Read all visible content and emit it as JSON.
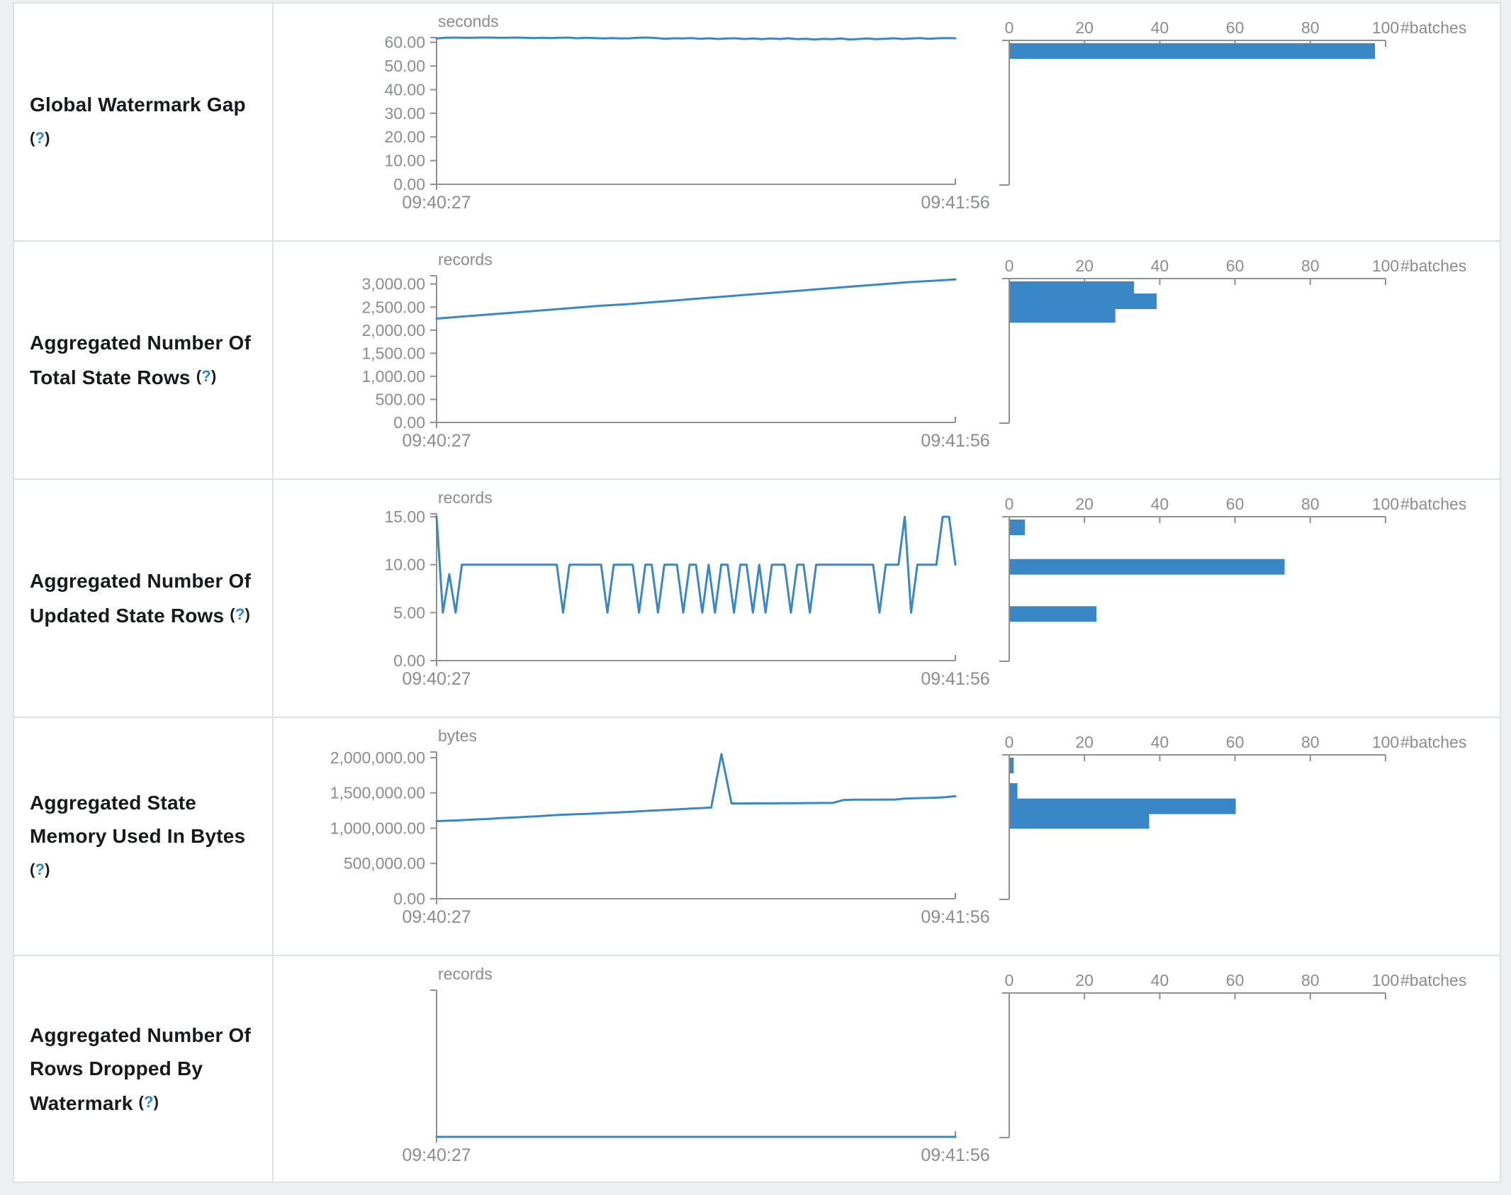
{
  "colors": {
    "accent_blue": "#3a87c8",
    "axis_gray": "#8f9193",
    "text_gray": "#8a8c8e",
    "label_text": "#17191c",
    "help_blue": "#2e86d1",
    "border": "#dee2e6",
    "page_background": "#edeff1",
    "table_background": "#ffffff"
  },
  "histogram_axis": {
    "tick_labels": [
      "0",
      "20",
      "40",
      "60",
      "80",
      "100"
    ],
    "tick_values": [
      0,
      20,
      40,
      60,
      80,
      100
    ],
    "max": 100,
    "label": "#batches"
  },
  "chart_data": [
    {
      "row_label": "Global Watermark Gap",
      "help": {
        "open": "(",
        "q": "?",
        "close": ")"
      },
      "timeline": {
        "type": "line",
        "title": "seconds",
        "x_start": "09:40:27",
        "x_end": "09:41:56",
        "y_max": 62,
        "y_ticks": [
          {
            "v": 60,
            "label": "60.00"
          },
          {
            "v": 50,
            "label": "50.00"
          },
          {
            "v": 40,
            "label": "40.00"
          },
          {
            "v": 30,
            "label": "30.00"
          },
          {
            "v": 20,
            "label": "20.00"
          },
          {
            "v": 10,
            "label": "10.00"
          },
          {
            "v": 0,
            "label": "0.00"
          }
        ],
        "values": [
          61.6,
          61.9,
          62,
          61.9,
          61.9,
          62,
          62,
          61.9,
          61.9,
          62,
          61.9,
          61.8,
          61.9,
          61.8,
          61.9,
          62,
          61.7,
          61.9,
          61.8,
          61.6,
          61.8,
          61.6,
          61.7,
          61.9,
          62,
          61.8,
          61.5,
          61.7,
          61.6,
          61.8,
          61.5,
          61.7,
          61.4,
          61.6,
          61.7,
          61.4,
          61.6,
          61.3,
          61.6,
          61.4,
          61.7,
          61.3,
          61.5,
          61.2,
          61.5,
          61.3,
          61.6,
          61.2,
          61.4,
          61.6,
          61.3,
          61.5,
          61.7,
          61.4,
          61.6,
          61.8,
          61.5,
          61.7,
          61.8,
          61.7
        ]
      },
      "histogram": {
        "type": "bar",
        "orientation": "horizontal",
        "bars": [
          {
            "bin_value": 61,
            "count": 97
          }
        ]
      }
    },
    {
      "row_label": "Aggregated Number Of Total State Rows",
      "help": {
        "open": "(",
        "q": "?",
        "close": ")"
      },
      "timeline": {
        "type": "line",
        "title": "records",
        "x_start": "09:40:27",
        "x_end": "09:41:56",
        "y_max": 3180,
        "y_ticks": [
          {
            "v": 3000,
            "label": "3,000.00"
          },
          {
            "v": 2500,
            "label": "2,500.00"
          },
          {
            "v": 2000,
            "label": "2,000.00"
          },
          {
            "v": 1500,
            "label": "1,500.00"
          },
          {
            "v": 1000,
            "label": "1,000.00"
          },
          {
            "v": 500,
            "label": "500.00"
          },
          {
            "v": 0,
            "label": "0.00"
          }
        ],
        "values": [
          2250,
          2290,
          2330,
          2370,
          2410,
          2450,
          2490,
          2530,
          2560,
          2600,
          2640,
          2680,
          2720,
          2760,
          2800,
          2840,
          2880,
          2920,
          2960,
          3000,
          3040,
          3070,
          3100
        ]
      },
      "histogram": {
        "type": "bar",
        "orientation": "horizontal",
        "bars": [
          {
            "bin_value": 2980,
            "count": 33
          },
          {
            "bin_value": 2680,
            "count": 39
          },
          {
            "bin_value": 2380,
            "count": 28
          }
        ]
      }
    },
    {
      "row_label": "Aggregated Number Of Updated State Rows",
      "help": {
        "open": "(",
        "q": "?",
        "close": ")"
      },
      "timeline": {
        "type": "line",
        "title": "records",
        "x_start": "09:40:27",
        "x_end": "09:41:56",
        "y_max": 15.3,
        "y_ticks": [
          {
            "v": 15,
            "label": "15.00"
          },
          {
            "v": 10,
            "label": "10.00"
          },
          {
            "v": 5,
            "label": "5.00"
          },
          {
            "v": 0,
            "label": "0.00"
          }
        ],
        "values": [
          15,
          5,
          9,
          5,
          10,
          10,
          10,
          10,
          10,
          10,
          10,
          10,
          10,
          10,
          10,
          10,
          10,
          10,
          10,
          10,
          5,
          10,
          10,
          10,
          10,
          10,
          10,
          5,
          10,
          10,
          10,
          10,
          5,
          10,
          10,
          5,
          10,
          10,
          10,
          5,
          10,
          10,
          5,
          10,
          5,
          10,
          10,
          5,
          10,
          10,
          5,
          10,
          5,
          10,
          10,
          10,
          5,
          10,
          10,
          5,
          10,
          10,
          10,
          10,
          10,
          10,
          10,
          10,
          10,
          10,
          5,
          10,
          10,
          10,
          15,
          5,
          10,
          10,
          10,
          10,
          15,
          15,
          10
        ]
      },
      "histogram": {
        "type": "bar",
        "orientation": "horizontal",
        "bars": [
          {
            "bin_value": 15,
            "count": 4
          },
          {
            "bin_value": 10,
            "count": 73
          },
          {
            "bin_value": 5,
            "count": 23
          }
        ]
      }
    },
    {
      "row_label": "Aggregated State Memory Used In Bytes",
      "help": {
        "open": "(",
        "q": "?",
        "close": ")"
      },
      "timeline": {
        "type": "line",
        "title": "bytes",
        "x_start": "09:40:27",
        "x_end": "09:41:56",
        "y_max": 2080000,
        "y_ticks": [
          {
            "v": 2000000,
            "label": "2,000,000.00"
          },
          {
            "v": 1500000,
            "label": "1,500,000.00"
          },
          {
            "v": 1000000,
            "label": "1,000,000.00"
          },
          {
            "v": 500000,
            "label": "500,000.00"
          },
          {
            "v": 0,
            "label": "0.00"
          }
        ],
        "values": [
          1100000,
          1105000,
          1110000,
          1118000,
          1125000,
          1130000,
          1140000,
          1148000,
          1155000,
          1163000,
          1170000,
          1180000,
          1188000,
          1195000,
          1200000,
          1205000,
          1212000,
          1218000,
          1225000,
          1232000,
          1240000,
          1248000,
          1255000,
          1262000,
          1270000,
          1278000,
          1285000,
          1292000,
          2050000,
          1350000,
          1350000,
          1351000,
          1352000,
          1353000,
          1354000,
          1355000,
          1356000,
          1357000,
          1358000,
          1360000,
          1400000,
          1404000,
          1405000,
          1405000,
          1406000,
          1406000,
          1420000,
          1424000,
          1428000,
          1432000,
          1440000,
          1455000
        ]
      },
      "histogram": {
        "type": "bar",
        "orientation": "horizontal",
        "bars": [
          {
            "bin_value": 1990000,
            "count": 1
          },
          {
            "bin_value": 1560000,
            "count": 2
          },
          {
            "bin_value": 1340000,
            "count": 60
          },
          {
            "bin_value": 1130000,
            "count": 37
          }
        ]
      }
    },
    {
      "row_label": "Aggregated Number Of Rows Dropped By Watermark",
      "help": {
        "open": "(",
        "q": "?",
        "close": ")"
      },
      "timeline": {
        "type": "line",
        "title": "records",
        "x_start": "09:40:27",
        "x_end": "09:41:56",
        "y_max": 1,
        "y_ticks": [],
        "values": [
          0,
          0,
          0,
          0,
          0,
          0,
          0,
          0,
          0,
          0
        ]
      },
      "histogram": {
        "type": "bar",
        "orientation": "horizontal",
        "bars": []
      }
    }
  ]
}
